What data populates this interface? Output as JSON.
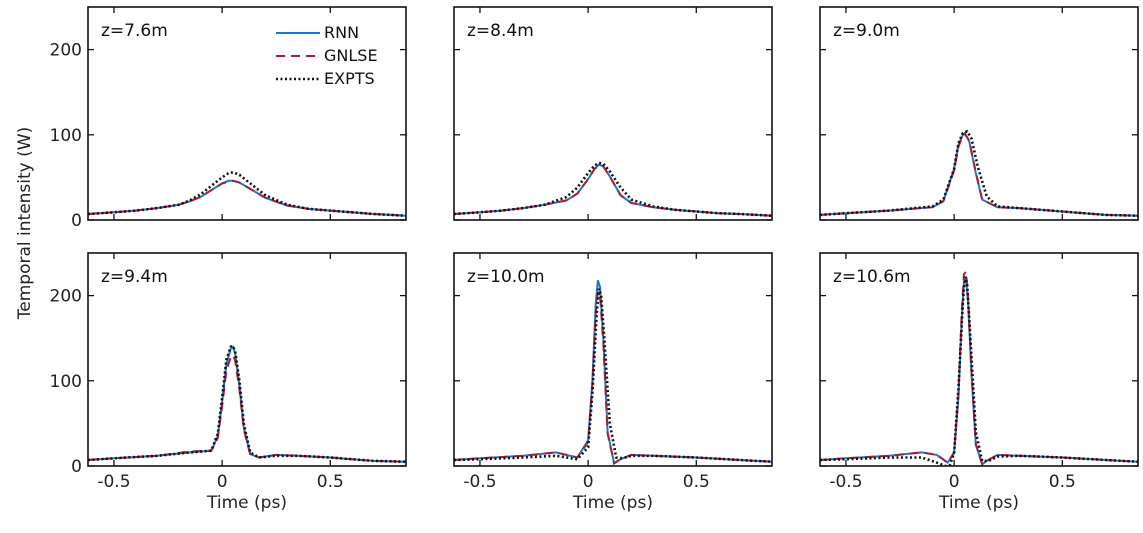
{
  "colors": {
    "RNN": "#1f77c4",
    "GNLSE": "#a3203a",
    "EXPTS": "#111111"
  },
  "chart_data": {
    "type": "line",
    "ylabel": "Temporal intensity (W)",
    "xlabel": "Time (ps)",
    "xlim": [
      -0.62,
      0.85
    ],
    "ylim": [
      0,
      250
    ],
    "xticks": [
      -0.5,
      0,
      0.5
    ],
    "xtick_labels": [
      "-0.5",
      "0",
      "0.5"
    ],
    "yticks": [
      0,
      100,
      200
    ],
    "ytick_labels": [
      "0",
      "100",
      "200"
    ],
    "legend": {
      "placement": "top-right of first panel",
      "entries": [
        "RNN",
        "GNLSE",
        "EXPTS"
      ]
    },
    "panels": [
      {
        "label": "z=7.6m",
        "series": [
          {
            "name": "RNN",
            "style": "solid",
            "x": [
              -0.62,
              -0.5,
              -0.4,
              -0.3,
              -0.2,
              -0.15,
              -0.1,
              -0.05,
              0,
              0.03,
              0.05,
              0.08,
              0.12,
              0.2,
              0.3,
              0.4,
              0.5,
              0.6,
              0.7,
              0.85
            ],
            "y": [
              7,
              9,
              11,
              14,
              18,
              22,
              27,
              35,
              43,
              46,
              46,
              44,
              38,
              26,
              17,
              13,
              11,
              9,
              7,
              5
            ]
          },
          {
            "name": "GNLSE",
            "style": "dashed",
            "x": [
              -0.62,
              -0.5,
              -0.4,
              -0.3,
              -0.2,
              -0.15,
              -0.1,
              -0.05,
              0,
              0.03,
              0.05,
              0.08,
              0.12,
              0.2,
              0.3,
              0.4,
              0.5,
              0.6,
              0.7,
              0.85
            ],
            "y": [
              7,
              9,
              11,
              14,
              18,
              22,
              27,
              35,
              43,
              45,
              46,
              44,
              38,
              26,
              17,
              13,
              11,
              9,
              7,
              5
            ]
          },
          {
            "name": "EXPTS",
            "style": "dotted",
            "x": [
              -0.62,
              -0.5,
              -0.4,
              -0.3,
              -0.2,
              -0.15,
              -0.1,
              -0.05,
              0,
              0.03,
              0.05,
              0.08,
              0.12,
              0.2,
              0.3,
              0.4,
              0.5,
              0.6,
              0.7,
              0.85
            ],
            "y": [
              7,
              9,
              11,
              14,
              18,
              23,
              30,
              40,
              50,
              55,
              56,
              53,
              45,
              29,
              18,
              13,
              11,
              9,
              7,
              5
            ]
          }
        ]
      },
      {
        "label": "z=8.4m",
        "series": [
          {
            "name": "RNN",
            "style": "solid",
            "x": [
              -0.62,
              -0.5,
              -0.4,
              -0.3,
              -0.2,
              -0.1,
              -0.05,
              0,
              0.03,
              0.05,
              0.07,
              0.1,
              0.15,
              0.2,
              0.3,
              0.4,
              0.5,
              0.6,
              0.7,
              0.85
            ],
            "y": [
              7,
              9,
              11,
              14,
              18,
              23,
              31,
              48,
              60,
              65,
              63,
              51,
              29,
              20,
              15,
              12,
              10,
              8,
              7,
              5
            ]
          },
          {
            "name": "GNLSE",
            "style": "dashed",
            "x": [
              -0.62,
              -0.5,
              -0.4,
              -0.3,
              -0.2,
              -0.1,
              -0.05,
              0,
              0.03,
              0.05,
              0.07,
              0.1,
              0.15,
              0.2,
              0.3,
              0.4,
              0.5,
              0.6,
              0.7,
              0.85
            ],
            "y": [
              7,
              9,
              11,
              14,
              18,
              23,
              31,
              48,
              60,
              64,
              63,
              51,
              29,
              20,
              15,
              12,
              10,
              8,
              7,
              5
            ]
          },
          {
            "name": "EXPTS",
            "style": "dotted",
            "x": [
              -0.62,
              -0.5,
              -0.4,
              -0.3,
              -0.2,
              -0.1,
              -0.05,
              0,
              0.03,
              0.05,
              0.07,
              0.1,
              0.15,
              0.2,
              0.3,
              0.4,
              0.5,
              0.6,
              0.7,
              0.85
            ],
            "y": [
              7,
              9,
              11,
              14,
              18,
              27,
              38,
              55,
              64,
              67,
              66,
              57,
              38,
              24,
              16,
              12,
              10,
              8,
              7,
              5
            ]
          }
        ]
      },
      {
        "label": "z=9.0m",
        "series": [
          {
            "name": "RNN",
            "style": "solid",
            "x": [
              -0.62,
              -0.5,
              -0.3,
              -0.1,
              -0.05,
              0,
              0.02,
              0.04,
              0.05,
              0.07,
              0.1,
              0.13,
              0.2,
              0.3,
              0.4,
              0.5,
              0.6,
              0.7,
              0.85
            ],
            "y": [
              6,
              8,
              11,
              15,
              22,
              60,
              88,
              100,
              102,
              92,
              55,
              24,
              15,
              14,
              12,
              10,
              8,
              6,
              5
            ]
          },
          {
            "name": "GNLSE",
            "style": "dashed",
            "x": [
              -0.62,
              -0.5,
              -0.3,
              -0.1,
              -0.05,
              0,
              0.02,
              0.04,
              0.05,
              0.07,
              0.1,
              0.13,
              0.2,
              0.3,
              0.4,
              0.5,
              0.6,
              0.7,
              0.85
            ],
            "y": [
              6,
              8,
              11,
              15,
              22,
              58,
              86,
              99,
              101,
              93,
              56,
              24,
              15,
              14,
              12,
              10,
              8,
              6,
              5
            ]
          },
          {
            "name": "EXPTS",
            "style": "dotted",
            "x": [
              -0.62,
              -0.5,
              -0.3,
              -0.1,
              -0.05,
              0,
              0.02,
              0.04,
              0.06,
              0.08,
              0.11,
              0.15,
              0.2,
              0.3,
              0.4,
              0.5,
              0.6,
              0.7,
              0.85
            ],
            "y": [
              6,
              8,
              11,
              16,
              24,
              60,
              90,
              102,
              104,
              96,
              62,
              28,
              16,
              14,
              12,
              10,
              8,
              6,
              5
            ]
          }
        ]
      },
      {
        "label": "z=9.4m",
        "series": [
          {
            "name": "RNN",
            "style": "solid",
            "x": [
              -0.62,
              -0.5,
              -0.3,
              -0.15,
              -0.05,
              -0.02,
              0,
              0.02,
              0.04,
              0.05,
              0.06,
              0.08,
              0.1,
              0.13,
              0.17,
              0.25,
              0.35,
              0.5,
              0.6,
              0.7,
              0.85
            ],
            "y": [
              7,
              9,
              12,
              16,
              18,
              35,
              75,
              120,
              138,
              140,
              132,
              95,
              45,
              14,
              10,
              13,
              12,
              10,
              8,
              6,
              5
            ]
          },
          {
            "name": "GNLSE",
            "style": "dashed",
            "x": [
              -0.62,
              -0.5,
              -0.3,
              -0.15,
              -0.05,
              -0.02,
              0,
              0.02,
              0.04,
              0.05,
              0.06,
              0.08,
              0.1,
              0.13,
              0.17,
              0.25,
              0.35,
              0.5,
              0.6,
              0.7,
              0.85
            ],
            "y": [
              7,
              9,
              12,
              17,
              18,
              33,
              70,
              112,
              128,
              130,
              124,
              90,
              43,
              14,
              10,
              13,
              12,
              10,
              8,
              6,
              5
            ]
          },
          {
            "name": "EXPTS",
            "style": "dotted",
            "x": [
              -0.62,
              -0.5,
              -0.3,
              -0.15,
              -0.05,
              -0.02,
              0,
              0.02,
              0.04,
              0.05,
              0.06,
              0.08,
              0.1,
              0.13,
              0.17,
              0.25,
              0.35,
              0.5,
              0.6,
              0.7,
              0.85
            ],
            "y": [
              7,
              9,
              12,
              16,
              18,
              38,
              80,
              125,
              140,
              141,
              135,
              100,
              50,
              16,
              10,
              12,
              12,
              10,
              8,
              6,
              5
            ]
          }
        ]
      },
      {
        "label": "z=10.0m",
        "series": [
          {
            "name": "RNN",
            "style": "solid",
            "x": [
              -0.62,
              -0.5,
              -0.3,
              -0.15,
              -0.05,
              0,
              0.02,
              0.035,
              0.045,
              0.055,
              0.07,
              0.09,
              0.12,
              0.15,
              0.2,
              0.3,
              0.5,
              0.7,
              0.85
            ],
            "y": [
              7,
              9,
              12,
              16,
              10,
              30,
              100,
              190,
              218,
              210,
              150,
              40,
              3,
              8,
              13,
              12,
              10,
              7,
              5
            ]
          },
          {
            "name": "GNLSE",
            "style": "dashed",
            "x": [
              -0.62,
              -0.5,
              -0.3,
              -0.15,
              -0.05,
              0,
              0.02,
              0.035,
              0.045,
              0.055,
              0.07,
              0.09,
              0.12,
              0.15,
              0.2,
              0.3,
              0.5,
              0.7,
              0.85
            ],
            "y": [
              7,
              9,
              12,
              16,
              10,
              28,
              95,
              180,
              205,
              200,
              145,
              38,
              3,
              8,
              13,
              12,
              10,
              7,
              5
            ]
          },
          {
            "name": "EXPTS",
            "style": "dotted",
            "x": [
              -0.62,
              -0.5,
              -0.3,
              -0.15,
              -0.05,
              0,
              0.02,
              0.04,
              0.05,
              0.06,
              0.075,
              0.1,
              0.13,
              0.16,
              0.2,
              0.3,
              0.5,
              0.7,
              0.85
            ],
            "y": [
              7,
              8,
              10,
              12,
              8,
              22,
              85,
              180,
              208,
              200,
              150,
              50,
              10,
              9,
              12,
              12,
              10,
              7,
              5
            ]
          }
        ]
      },
      {
        "label": "z=10.6m",
        "series": [
          {
            "name": "RNN",
            "style": "solid",
            "x": [
              -0.62,
              -0.5,
              -0.3,
              -0.15,
              -0.08,
              -0.03,
              0,
              0.02,
              0.035,
              0.045,
              0.055,
              0.065,
              0.08,
              0.1,
              0.13,
              0.15,
              0.2,
              0.3,
              0.5,
              0.7,
              0.85
            ],
            "y": [
              7,
              9,
              12,
              16,
              13,
              4,
              15,
              80,
              170,
              215,
              220,
              190,
              110,
              25,
              2,
              6,
              13,
              12,
              10,
              7,
              5
            ]
          },
          {
            "name": "GNLSE",
            "style": "dashed",
            "x": [
              -0.62,
              -0.5,
              -0.3,
              -0.15,
              -0.08,
              -0.03,
              0,
              0.02,
              0.035,
              0.045,
              0.055,
              0.065,
              0.08,
              0.1,
              0.13,
              0.15,
              0.2,
              0.3,
              0.5,
              0.7,
              0.85
            ],
            "y": [
              7,
              9,
              12,
              16,
              13,
              4,
              16,
              85,
              180,
              225,
              228,
              195,
              112,
              26,
              2,
              6,
              13,
              12,
              10,
              7,
              5
            ]
          },
          {
            "name": "EXPTS",
            "style": "dotted",
            "x": [
              -0.62,
              -0.5,
              -0.3,
              -0.15,
              -0.08,
              -0.04,
              -0.02,
              0,
              0.02,
              0.04,
              0.05,
              0.06,
              0.08,
              0.1,
              0.13,
              0.16,
              0.2,
              0.3,
              0.5,
              0.7,
              0.85
            ],
            "y": [
              7,
              8,
              10,
              10,
              4,
              0,
              1,
              15,
              90,
              190,
              222,
              215,
              130,
              40,
              6,
              6,
              11,
              12,
              10,
              7,
              5
            ]
          }
        ]
      }
    ]
  }
}
